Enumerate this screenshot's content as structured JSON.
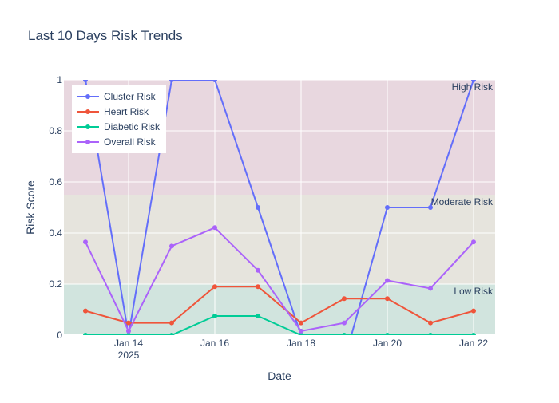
{
  "chart_data": {
    "type": "line",
    "title": "Last 10 Days Risk Trends",
    "xlabel": "Date",
    "ylabel": "Risk Score",
    "x": [
      "2025-01-13",
      "2025-01-14",
      "2025-01-15",
      "2025-01-16",
      "2025-01-17",
      "2025-01-18",
      "2025-01-19",
      "2025-01-20",
      "2025-01-21",
      "2025-01-22"
    ],
    "x_ticks": [
      {
        "date": "2025-01-14",
        "label": "Jan 14",
        "sublabel": "2025"
      },
      {
        "date": "2025-01-16",
        "label": "Jan 16",
        "sublabel": ""
      },
      {
        "date": "2025-01-18",
        "label": "Jan 18",
        "sublabel": ""
      },
      {
        "date": "2025-01-20",
        "label": "Jan 20",
        "sublabel": ""
      },
      {
        "date": "2025-01-22",
        "label": "Jan 22",
        "sublabel": ""
      }
    ],
    "xlim": [
      "2025-01-12T12:00",
      "2025-01-22T12:00"
    ],
    "ylim": [
      0,
      1
    ],
    "y_ticks": [
      0,
      0.2,
      0.4,
      0.6,
      0.8,
      1
    ],
    "y_tick_labels": [
      "0",
      "0.2",
      "0.4",
      "0.6",
      "0.8",
      "1"
    ],
    "grid": true,
    "legend_position": "top-left",
    "series": [
      {
        "name": "Cluster Risk",
        "color": "#636efa",
        "values": [
          1,
          0,
          1,
          1,
          0.5,
          0,
          -0.1,
          0.5,
          0.5,
          1
        ]
      },
      {
        "name": "Heart Risk",
        "color": "#EF553B",
        "values": [
          0.095,
          0.048,
          0.048,
          0.19,
          0.19,
          0.048,
          0.143,
          0.143,
          0.048,
          0.095
        ]
      },
      {
        "name": "Diabetic Risk",
        "color": "#00cc96",
        "values": [
          0,
          0,
          0,
          0.075,
          0.075,
          0,
          0,
          0,
          0,
          0
        ]
      },
      {
        "name": "Overall Risk",
        "color": "#ab63fa",
        "values": [
          0.365,
          0.016,
          0.349,
          0.421,
          0.254,
          0.016,
          0.048,
          0.214,
          0.183,
          0.365
        ]
      }
    ],
    "bands": [
      {
        "label": "Low Risk",
        "from": 0,
        "to": 0.2,
        "color": "#d1e4de"
      },
      {
        "label": "Moderate Risk",
        "from": 0.2,
        "to": 0.55,
        "color": "#e6e4dd"
      },
      {
        "label": "High Risk",
        "from": 0.55,
        "to": 1,
        "color": "#e8d7df"
      }
    ]
  }
}
